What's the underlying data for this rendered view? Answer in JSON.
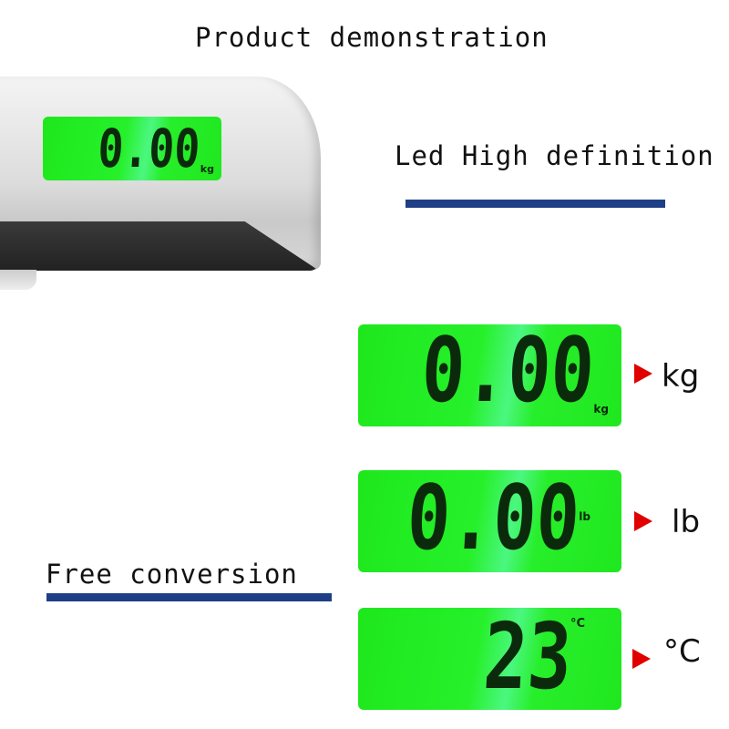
{
  "title": "Product demonstration",
  "feature_1": "Led High definition",
  "feature_2": "Free conversion",
  "scale_display": {
    "value": "0.00",
    "unit": "kg"
  },
  "displays": [
    {
      "value": "0.00",
      "unit": "kg",
      "label": "kg"
    },
    {
      "value": "0.00",
      "unit": "lb",
      "label": "lb"
    },
    {
      "value": "23",
      "unit": "°C",
      "label": "°C"
    }
  ],
  "colors": {
    "lcd": "#22ec22",
    "accent_bar": "#1e3f85",
    "arrow": "#e00000"
  }
}
